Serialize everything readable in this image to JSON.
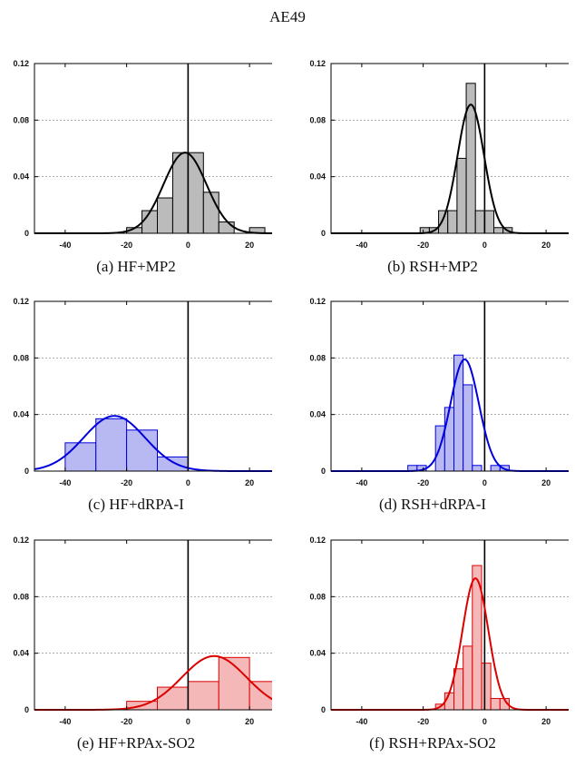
{
  "figure": {
    "title": "AE49"
  },
  "chart_data": [
    {
      "type": "bar",
      "caption": "(a) HF+MP2",
      "color": "#000000",
      "fill": "#bbbbbb",
      "xlim": [
        -50,
        30
      ],
      "ylim": [
        0,
        0.12
      ],
      "xticks": [
        -40,
        -20,
        0,
        20
      ],
      "yticks": [
        0,
        0.04,
        0.08,
        0.12
      ],
      "ytick_labels": [
        "0",
        "0.04",
        "0.08",
        "0.12"
      ],
      "grid": "horizontal dashed",
      "bin_width": 5,
      "bins": [
        [
          -20,
          0.004
        ],
        [
          -15,
          0.016
        ],
        [
          -10,
          0.025
        ],
        [
          -5,
          0.057
        ],
        [
          0,
          0.057
        ],
        [
          5,
          0.029
        ],
        [
          10,
          0.008
        ],
        [
          15,
          0.0
        ],
        [
          20,
          0.004
        ]
      ],
      "curve": {
        "mean": -1,
        "sd": 7,
        "peak": 0.057
      }
    },
    {
      "type": "bar",
      "caption": "(b) RSH+MP2",
      "color": "#000000",
      "fill": "#bbbbbb",
      "xlim": [
        -50,
        30
      ],
      "ylim": [
        0,
        0.12
      ],
      "xticks": [
        -40,
        -20,
        0,
        20
      ],
      "yticks": [
        0,
        0.04,
        0.08,
        0.12
      ],
      "ytick_labels": [
        "0",
        "0.04",
        "0.08",
        "0.12"
      ],
      "grid": "horizontal dashed",
      "bin_width": 3,
      "bins": [
        [
          -21,
          0.004
        ],
        [
          -18,
          0.004
        ],
        [
          -15,
          0.016
        ],
        [
          -12,
          0.016
        ],
        [
          -9,
          0.053
        ],
        [
          -6,
          0.106
        ],
        [
          -3,
          0.016
        ],
        [
          0,
          0.016
        ],
        [
          3,
          0.004
        ],
        [
          6,
          0.004
        ]
      ],
      "curve": {
        "mean": -4.5,
        "sd": 4.3,
        "peak": 0.091
      }
    },
    {
      "type": "bar",
      "caption": "(c) HF+dRPA-I",
      "color": "#0000dd",
      "fill": "#b8b8f2",
      "xlim": [
        -50,
        30
      ],
      "ylim": [
        0,
        0.12
      ],
      "xticks": [
        -40,
        -20,
        0,
        20
      ],
      "yticks": [
        0,
        0.04,
        0.08,
        0.12
      ],
      "ytick_labels": [
        "0",
        "0.04",
        "0.08",
        "0.12"
      ],
      "grid": "horizontal dashed",
      "bin_width": 10,
      "bins": [
        [
          -40,
          0.02
        ],
        [
          -30,
          0.037
        ],
        [
          -20,
          0.029
        ],
        [
          -10,
          0.01
        ]
      ],
      "curve": {
        "mean": -24,
        "sd": 10,
        "peak": 0.039
      }
    },
    {
      "type": "bar",
      "caption": "(d) RSH+dRPA-I",
      "color": "#0000dd",
      "fill": "#b8b8f2",
      "xlim": [
        -50,
        30
      ],
      "ylim": [
        0,
        0.12
      ],
      "xticks": [
        -40,
        -20,
        0,
        20
      ],
      "yticks": [
        0,
        0.04,
        0.08,
        0.12
      ],
      "ytick_labels": [
        "0",
        "0.04",
        "0.08",
        "0.12"
      ],
      "grid": "horizontal dashed",
      "bin_width": 3,
      "bins": [
        [
          -25,
          0.004
        ],
        [
          -22,
          0.004
        ],
        [
          -16,
          0.032
        ],
        [
          -13,
          0.045
        ],
        [
          -10,
          0.082
        ],
        [
          -7,
          0.061
        ],
        [
          -4,
          0.004
        ],
        [
          2,
          0.004
        ],
        [
          5,
          0.004
        ]
      ],
      "curve": {
        "mean": -6.5,
        "sd": 4.6,
        "peak": 0.079
      }
    },
    {
      "type": "bar",
      "caption": "(e) HF+RPAx-SO2",
      "color": "#dd0000",
      "fill": "#f4b8b8",
      "xlim": [
        -50,
        30
      ],
      "ylim": [
        0,
        0.12
      ],
      "xticks": [
        -40,
        -20,
        0,
        20
      ],
      "yticks": [
        0,
        0.04,
        0.08,
        0.12
      ],
      "ytick_labels": [
        "0",
        "0.04",
        "0.08",
        "0.12"
      ],
      "grid": "horizontal dashed",
      "bin_width": 10,
      "bins": [
        [
          -20,
          0.006
        ],
        [
          -10,
          0.016
        ],
        [
          0,
          0.02
        ],
        [
          10,
          0.037
        ],
        [
          20,
          0.02
        ]
      ],
      "curve": {
        "mean": 8.5,
        "sd": 10.5,
        "peak": 0.038
      }
    },
    {
      "type": "bar",
      "caption": "(f) RSH+RPAx-SO2",
      "color": "#dd0000",
      "fill": "#f4b8b8",
      "xlim": [
        -50,
        30
      ],
      "ylim": [
        0,
        0.12
      ],
      "xticks": [
        -40,
        -20,
        0,
        20
      ],
      "yticks": [
        0,
        0.04,
        0.08,
        0.12
      ],
      "ytick_labels": [
        "0",
        "0.04",
        "0.08",
        "0.12"
      ],
      "grid": "horizontal dashed",
      "bin_width": 3,
      "bins": [
        [
          -16,
          0.004
        ],
        [
          -13,
          0.012
        ],
        [
          -10,
          0.029
        ],
        [
          -7,
          0.045
        ],
        [
          -4,
          0.102
        ],
        [
          -1,
          0.033
        ],
        [
          2,
          0.008
        ],
        [
          5,
          0.008
        ]
      ],
      "curve": {
        "mean": -3,
        "sd": 4.2,
        "peak": 0.093
      }
    }
  ]
}
